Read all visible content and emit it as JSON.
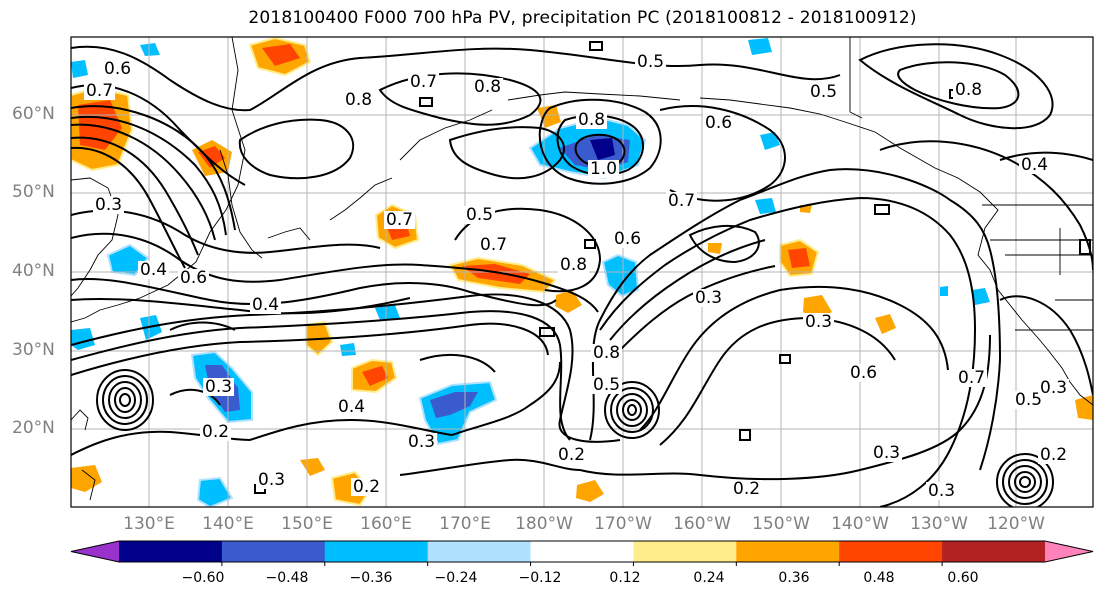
{
  "title": "2018100400 F000 700 hPa PV, precipitation PC (2018100812 - 2018100912)",
  "map": {
    "lat_labels": [
      "60°N",
      "50°N",
      "40°N",
      "30°N",
      "20°N"
    ],
    "lon_labels": [
      "130°E",
      "140°E",
      "150°E",
      "160°E",
      "170°E",
      "180°W",
      "170°W",
      "160°W",
      "150°W",
      "140°W",
      "130°W",
      "120°W"
    ],
    "pv_contour_labels": [
      {
        "text": "0.6"
      },
      {
        "text": "0.7"
      },
      {
        "text": "0.8"
      },
      {
        "text": "0.8"
      },
      {
        "text": "0.7"
      },
      {
        "text": "0.8"
      },
      {
        "text": "0.5"
      },
      {
        "text": "0.6"
      },
      {
        "text": "0.8"
      },
      {
        "text": "0.5"
      },
      {
        "text": "0.4"
      },
      {
        "text": "1.0"
      },
      {
        "text": "0.3"
      },
      {
        "text": "0.7"
      },
      {
        "text": "0.5"
      },
      {
        "text": "0.7"
      },
      {
        "text": "0.7"
      },
      {
        "text": "0.4"
      },
      {
        "text": "0.6"
      },
      {
        "text": "0.6"
      },
      {
        "text": "0.8"
      },
      {
        "text": "0.4"
      },
      {
        "text": "0.3"
      },
      {
        "text": "0.5"
      },
      {
        "text": "0.3"
      },
      {
        "text": "0.8"
      },
      {
        "text": "0.3"
      },
      {
        "text": "0.4"
      },
      {
        "text": "0.2"
      },
      {
        "text": "0.3"
      },
      {
        "text": "0.5"
      },
      {
        "text": "0.2"
      },
      {
        "text": "0.3"
      },
      {
        "text": "0.2"
      },
      {
        "text": "0.3"
      },
      {
        "text": "0.6"
      },
      {
        "text": "0.7"
      },
      {
        "text": "0.3"
      },
      {
        "text": "0.2"
      },
      {
        "text": "0.3"
      },
      {
        "text": "0.2"
      }
    ]
  },
  "colorbar": {
    "ticks": [
      "−0.60",
      "−0.48",
      "−0.36",
      "−0.24",
      "−0.12",
      "0.12",
      "0.24",
      "0.36",
      "0.48",
      "0.60"
    ],
    "colors": [
      "#9932cc",
      "#00008b",
      "#3a5bcd",
      "#00bfff",
      "#b0e2ff",
      "#ffffff",
      "#ffec8b",
      "#ffa500",
      "#ff4500",
      "#b22222",
      "#ff83ba"
    ]
  }
}
